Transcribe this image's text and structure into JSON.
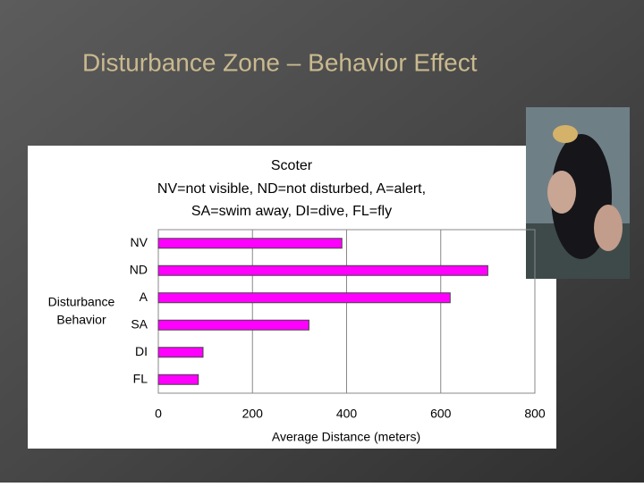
{
  "slide_title": "Disturbance Zone – Behavior Effect",
  "chart_data": {
    "type": "hbar",
    "title": "Scoter",
    "subtitle": [
      "NV=not visible, ND=not disturbed, A=alert,",
      "SA=swim away, DI=dive, FL=fly"
    ],
    "y_label": [
      "Disturbance",
      "Behavior"
    ],
    "x_label": "Average Distance (meters)",
    "categories": [
      "NV",
      "ND",
      "A",
      "SA",
      "DI",
      "FL"
    ],
    "values": [
      390,
      700,
      620,
      320,
      95,
      85
    ],
    "color": "#ff00ff",
    "xlim": [
      0,
      800
    ],
    "xticks": [
      0,
      200,
      400,
      600,
      800
    ],
    "grid": true
  }
}
